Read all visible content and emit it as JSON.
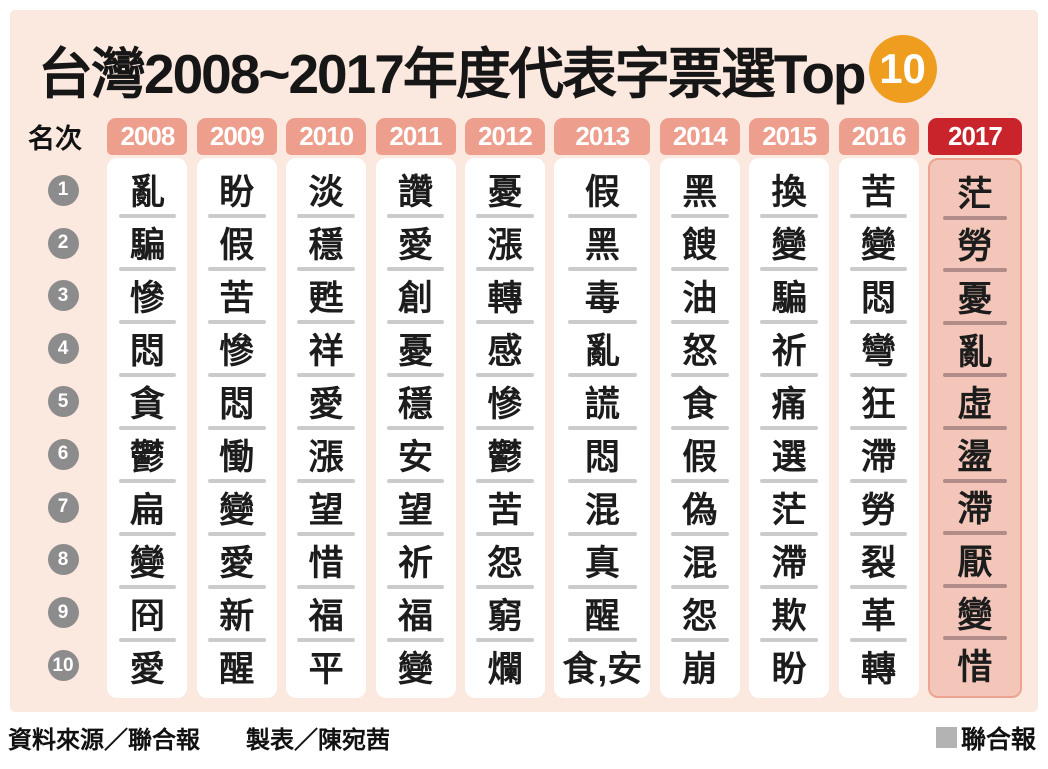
{
  "title": {
    "text": "台灣2008~2017年度代表字票選Top",
    "badge": "10"
  },
  "rank_header": "名次",
  "ranks": [
    "1",
    "2",
    "3",
    "4",
    "5",
    "6",
    "7",
    "8",
    "9",
    "10"
  ],
  "chart_data": {
    "type": "table",
    "title": "台灣2008~2017年度代表字票選Top 10",
    "rank_label": "名次",
    "years": [
      "2008",
      "2009",
      "2010",
      "2011",
      "2012",
      "2013",
      "2014",
      "2015",
      "2016",
      "2017"
    ],
    "columns": [
      {
        "year": "2008",
        "highlight": false,
        "wide": false,
        "chars": [
          "亂",
          "騙",
          "慘",
          "悶",
          "貪",
          "鬱",
          "扁",
          "變",
          "冏",
          "愛"
        ]
      },
      {
        "year": "2009",
        "highlight": false,
        "wide": false,
        "chars": [
          "盼",
          "假",
          "苦",
          "慘",
          "悶",
          "慟",
          "變",
          "愛",
          "新",
          "醒"
        ]
      },
      {
        "year": "2010",
        "highlight": false,
        "wide": false,
        "chars": [
          "淡",
          "穩",
          "甦",
          "祥",
          "愛",
          "漲",
          "望",
          "惜",
          "福",
          "平"
        ]
      },
      {
        "year": "2011",
        "highlight": false,
        "wide": false,
        "chars": [
          "讚",
          "愛",
          "創",
          "憂",
          "穩",
          "安",
          "望",
          "祈",
          "福",
          "變"
        ]
      },
      {
        "year": "2012",
        "highlight": false,
        "wide": false,
        "chars": [
          "憂",
          "漲",
          "轉",
          "感",
          "慘",
          "鬱",
          "苦",
          "怨",
          "窮",
          "爛"
        ]
      },
      {
        "year": "2013",
        "highlight": false,
        "wide": true,
        "chars": [
          "假",
          "黑",
          "毒",
          "亂",
          "謊",
          "悶",
          "混",
          "真",
          "醒",
          "食,安"
        ]
      },
      {
        "year": "2014",
        "highlight": false,
        "wide": false,
        "chars": [
          "黑",
          "餿",
          "油",
          "怒",
          "食",
          "假",
          "偽",
          "混",
          "怨",
          "崩"
        ]
      },
      {
        "year": "2015",
        "highlight": false,
        "wide": false,
        "chars": [
          "換",
          "變",
          "騙",
          "祈",
          "痛",
          "選",
          "茫",
          "滯",
          "欺",
          "盼"
        ]
      },
      {
        "year": "2016",
        "highlight": false,
        "wide": false,
        "chars": [
          "苦",
          "變",
          "悶",
          "彎",
          "狂",
          "滯",
          "勞",
          "裂",
          "革",
          "轉"
        ]
      },
      {
        "year": "2017",
        "highlight": true,
        "wide": false,
        "chars": [
          "茫",
          "勞",
          "憂",
          "亂",
          "虛",
          "盪",
          "滯",
          "厭",
          "變",
          "惜"
        ]
      }
    ]
  },
  "footer": {
    "source": "資料來源／聯合報",
    "credit": "製表／陳宛茜",
    "brand": "聯合報"
  },
  "colors": {
    "panel_bg": "#fbe8df",
    "tab_salmon": "#ee9e8d",
    "tab_red": "#c9242b",
    "col2017_bg": "#f3c6b9",
    "badge_orange": "#ee9d1f",
    "rank_gray": "#8c8c8c",
    "separator_gray": "#cbcbcb",
    "separator_mauve": "#b28c88"
  }
}
